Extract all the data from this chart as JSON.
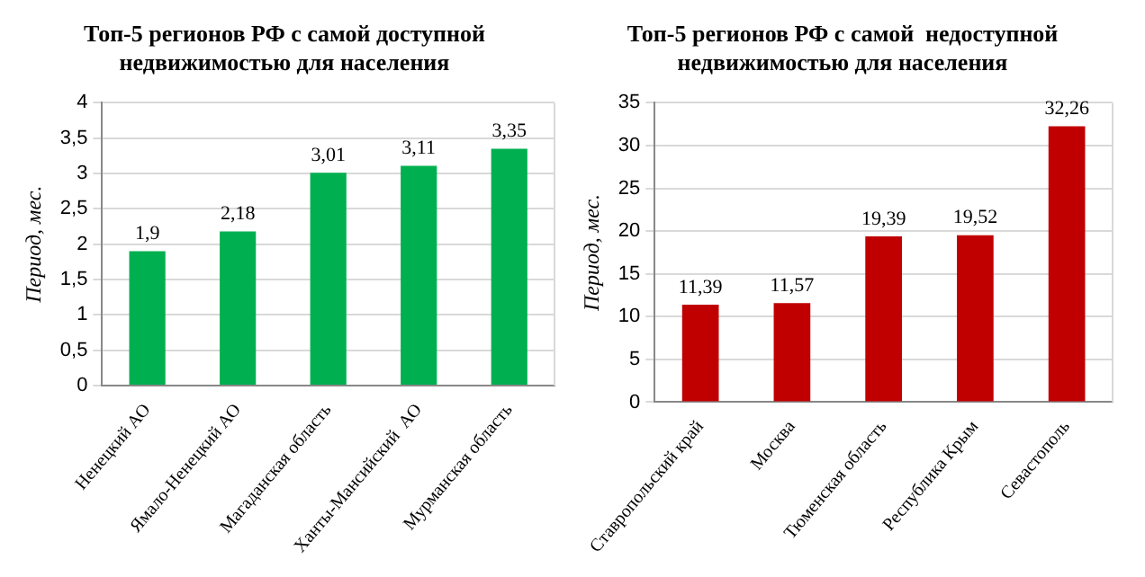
{
  "chart_data": [
    {
      "type": "bar",
      "title": "Топ-5 регионов РФ с самой доступной\nнедвижимостью для населения",
      "ylabel": "Период, мес.",
      "categories": [
        "Ненецкий АО",
        "Ямало-Ненецкий АО",
        "Магаданская область",
        "Ханты-Мансийский  АО",
        "Мурманская область"
      ],
      "values": [
        1.9,
        2.18,
        3.01,
        3.11,
        3.35
      ],
      "value_labels": [
        "1,9",
        "2,18",
        "3,01",
        "3,11",
        "3,35"
      ],
      "color": "#00b050",
      "ylim": [
        0,
        4
      ],
      "yticks": [
        0,
        {
          "value": 0.5,
          "label": "0,5"
        },
        1,
        {
          "value": 1.5,
          "label": "1,5"
        },
        2,
        {
          "value": 2.5,
          "label": "2,5"
        },
        3,
        {
          "value": 3.5,
          "label": "3,5"
        },
        4
      ],
      "grid": "y"
    },
    {
      "type": "bar",
      "title": "Топ-5 регионов РФ с самой  недоступной\nнедвижимостью для населения",
      "ylabel": "Период, мес.",
      "categories": [
        "Ставропольский край",
        "Москва",
        "Тюменская область",
        "Республика Крым",
        "Севастополь"
      ],
      "values": [
        11.39,
        11.57,
        19.39,
        19.52,
        32.26
      ],
      "value_labels": [
        "11,39",
        "11,57",
        "19,39",
        "19,52",
        "32,26"
      ],
      "color": "#c00000",
      "ylim": [
        0,
        35
      ],
      "yticks": [
        0,
        5,
        10,
        15,
        20,
        25,
        30,
        35
      ],
      "grid": "y"
    }
  ]
}
